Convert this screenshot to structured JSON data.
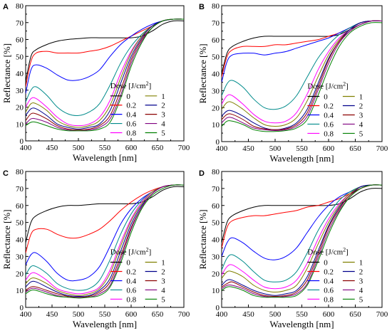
{
  "figure": {
    "panels": [
      "A",
      "B",
      "C",
      "D"
    ],
    "legend_title": "Dose [J/cm",
    "legend_title_sup": "2",
    "legend_title_end": "]"
  },
  "chart_data": [
    {
      "type": "line",
      "panel": "A",
      "xlabel": "Wavelength [nm]",
      "ylabel": "Reflectance [%]",
      "xlim": [
        400,
        700
      ],
      "ylim": [
        0,
        80
      ],
      "xticks": [
        400,
        450,
        500,
        550,
        600,
        650,
        700
      ],
      "yticks": [
        0,
        10,
        20,
        30,
        40,
        50,
        60,
        70,
        80
      ],
      "grid": false,
      "legend_placement": "center-right",
      "x": [
        400,
        410,
        420,
        440,
        460,
        480,
        500,
        520,
        540,
        560,
        580,
        600,
        620,
        640,
        660,
        680,
        700
      ],
      "series": [
        {
          "name": "0",
          "color": "#000000",
          "values": [
            35,
            50,
            54,
            57,
            59,
            60,
            60.5,
            61,
            61,
            61,
            61,
            61,
            62,
            65,
            69,
            71,
            71
          ]
        },
        {
          "name": "0.2",
          "color": "#ff0000",
          "values": [
            32,
            47,
            52,
            53,
            52,
            52,
            52,
            53,
            54,
            56,
            59,
            62,
            65,
            68,
            71,
            72,
            72
          ]
        },
        {
          "name": "0.4",
          "color": "#0000ff",
          "values": [
            28,
            42,
            45,
            43,
            39,
            36,
            36,
            38,
            42,
            50,
            57,
            62,
            66,
            69,
            71,
            72,
            72
          ]
        },
        {
          "name": "0.6",
          "color": "#008b8b",
          "values": [
            23,
            30,
            32,
            27,
            20,
            16,
            15,
            17,
            22,
            33,
            46,
            56,
            63,
            68,
            71,
            72,
            72
          ]
        },
        {
          "name": "0.8",
          "color": "#ff00ff",
          "values": [
            20,
            25,
            25,
            20,
            14,
            10,
            9,
            10,
            14,
            24,
            40,
            53,
            62,
            68,
            71,
            72,
            72
          ]
        },
        {
          "name": "1",
          "color": "#808000",
          "values": [
            17,
            22,
            22,
            18,
            12,
            9,
            8,
            9,
            12,
            21,
            37,
            52,
            62,
            68,
            71,
            72,
            72
          ]
        },
        {
          "name": "2",
          "color": "#00008b",
          "values": [
            15,
            19,
            19,
            15,
            10,
            8,
            7,
            8,
            10,
            18,
            34,
            50,
            61,
            68,
            71,
            72,
            72
          ]
        },
        {
          "name": "3",
          "color": "#8b0000",
          "values": [
            12,
            16,
            16,
            13,
            9,
            7,
            6.5,
            7,
            9,
            15,
            30,
            48,
            60,
            67,
            71,
            72,
            72
          ]
        },
        {
          "name": "4",
          "color": "#800080",
          "values": [
            10,
            13,
            13,
            11,
            8,
            6.5,
            6,
            6.5,
            8,
            13,
            27,
            46,
            59,
            67,
            71,
            72,
            72
          ]
        },
        {
          "name": "5",
          "color": "#008000",
          "values": [
            9,
            11,
            11,
            9,
            7,
            6,
            6,
            6,
            7,
            11,
            25,
            44,
            58,
            67,
            71,
            72,
            72
          ]
        }
      ]
    },
    {
      "type": "line",
      "panel": "B",
      "xlabel": "Wavelength [nm]",
      "ylabel": "Reflectance [%]",
      "xlim": [
        400,
        700
      ],
      "ylim": [
        0,
        80
      ],
      "xticks": [
        400,
        450,
        500,
        550,
        600,
        650,
        700
      ],
      "yticks": [
        0,
        10,
        20,
        30,
        40,
        50,
        60,
        70,
        80
      ],
      "grid": false,
      "legend_placement": "center-right",
      "x": [
        400,
        410,
        420,
        440,
        460,
        480,
        500,
        520,
        540,
        560,
        580,
        600,
        620,
        640,
        660,
        680,
        700
      ],
      "series": [
        {
          "name": "0",
          "color": "#000000",
          "values": [
            40,
            52,
            56,
            59,
            61,
            62,
            62,
            62,
            62,
            62,
            62,
            62,
            63,
            66,
            69,
            71,
            71
          ]
        },
        {
          "name": "0.2",
          "color": "#ff0000",
          "values": [
            38,
            50,
            54,
            56,
            56,
            56,
            57,
            57,
            58,
            59,
            60,
            62,
            64,
            67,
            70,
            71,
            71
          ]
        },
        {
          "name": "0.4",
          "color": "#0000ff",
          "values": [
            35,
            47,
            51,
            52,
            52,
            51,
            52,
            53,
            55,
            57,
            59,
            61,
            64,
            67,
            70,
            71,
            71
          ]
        },
        {
          "name": "0.6",
          "color": "#008b8b",
          "values": [
            27,
            34,
            36,
            32,
            25,
            20,
            19,
            21,
            27,
            38,
            49,
            57,
            63,
            67,
            70,
            71,
            71
          ]
        },
        {
          "name": "0.8",
          "color": "#ff00ff",
          "values": [
            22,
            27,
            27,
            22,
            16,
            12,
            11,
            12,
            17,
            28,
            42,
            53,
            61,
            66,
            70,
            71,
            71
          ]
        },
        {
          "name": "1",
          "color": "#808000",
          "values": [
            19,
            23,
            23,
            19,
            14,
            10,
            9,
            10,
            14,
            24,
            38,
            51,
            60,
            66,
            70,
            71,
            71
          ]
        },
        {
          "name": "2",
          "color": "#00008b",
          "values": [
            15,
            18,
            18,
            15,
            11,
            8,
            7,
            8,
            11,
            19,
            34,
            49,
            59,
            66,
            70,
            71,
            71
          ]
        },
        {
          "name": "3",
          "color": "#8b0000",
          "values": [
            13,
            16,
            16,
            13,
            9,
            7.5,
            7,
            7.5,
            10,
            17,
            32,
            48,
            59,
            65,
            69,
            71,
            71
          ]
        },
        {
          "name": "4",
          "color": "#800080",
          "values": [
            11,
            14,
            14,
            11,
            8,
            7,
            6.5,
            7,
            9,
            15,
            30,
            46,
            58,
            65,
            69,
            71,
            71
          ]
        },
        {
          "name": "5",
          "color": "#008000",
          "values": [
            9,
            12,
            12,
            10,
            7,
            6,
            6,
            6.5,
            8,
            13,
            27,
            43,
            56,
            64,
            68,
            70,
            70
          ]
        }
      ]
    },
    {
      "type": "line",
      "panel": "C",
      "xlabel": "Wavelength [nm]",
      "ylabel": "Reflectance [%]",
      "xlim": [
        400,
        700
      ],
      "ylim": [
        0,
        80
      ],
      "xticks": [
        400,
        450,
        500,
        550,
        600,
        650,
        700
      ],
      "yticks": [
        0,
        10,
        20,
        30,
        40,
        50,
        60,
        70,
        80
      ],
      "grid": false,
      "legend_placement": "center-right",
      "x": [
        400,
        410,
        420,
        440,
        460,
        480,
        500,
        520,
        540,
        560,
        580,
        600,
        620,
        640,
        660,
        680,
        700
      ],
      "series": [
        {
          "name": "0",
          "color": "#000000",
          "values": [
            38,
            50,
            54,
            57,
            59,
            60,
            60,
            60.5,
            61,
            61,
            61,
            61,
            62,
            65,
            69,
            71,
            71
          ]
        },
        {
          "name": "0.2",
          "color": "#ff0000",
          "values": [
            32,
            43,
            46,
            46,
            43,
            41,
            41,
            43,
            46,
            51,
            57,
            62,
            66,
            69,
            71,
            72,
            72
          ]
        },
        {
          "name": "0.4",
          "color": "#0000ff",
          "values": [
            25,
            31,
            32,
            27,
            20,
            16,
            16,
            18,
            24,
            36,
            49,
            58,
            64,
            68,
            71,
            72,
            72
          ]
        },
        {
          "name": "0.6",
          "color": "#008b8b",
          "values": [
            19,
            24,
            24,
            20,
            14,
            11,
            10,
            11,
            16,
            28,
            43,
            55,
            63,
            68,
            71,
            72,
            72
          ]
        },
        {
          "name": "0.8",
          "color": "#ff00ff",
          "values": [
            16,
            20,
            20,
            16,
            11,
            9,
            8,
            9,
            12,
            22,
            38,
            52,
            62,
            68,
            71,
            72,
            72
          ]
        },
        {
          "name": "1",
          "color": "#808000",
          "values": [
            14,
            17,
            17,
            14,
            10,
            8,
            7,
            8,
            11,
            20,
            36,
            51,
            61,
            68,
            71,
            72,
            72
          ]
        },
        {
          "name": "2",
          "color": "#00008b",
          "values": [
            12,
            15,
            15,
            12,
            9,
            7,
            6.5,
            7,
            10,
            17,
            33,
            49,
            60,
            67,
            71,
            72,
            72
          ]
        },
        {
          "name": "3",
          "color": "#8b0000",
          "values": [
            10,
            12,
            12,
            10,
            8,
            6.5,
            6,
            6.5,
            9,
            15,
            30,
            47,
            59,
            67,
            71,
            72,
            72
          ]
        },
        {
          "name": "4",
          "color": "#800080",
          "values": [
            9,
            11,
            11,
            9,
            7,
            6,
            6,
            6,
            8,
            13,
            28,
            46,
            59,
            67,
            71,
            72,
            72
          ]
        },
        {
          "name": "5",
          "color": "#008000",
          "values": [
            8,
            10,
            10,
            8,
            6.5,
            6,
            5.5,
            6,
            7,
            12,
            26,
            44,
            58,
            66,
            70,
            72,
            72
          ]
        }
      ]
    },
    {
      "type": "line",
      "panel": "D",
      "xlabel": "Wavelength [nm]",
      "ylabel": "Reflectance [%]",
      "xlim": [
        400,
        700
      ],
      "ylim": [
        0,
        80
      ],
      "xticks": [
        400,
        450,
        500,
        550,
        600,
        650,
        700
      ],
      "yticks": [
        0,
        10,
        20,
        30,
        40,
        50,
        60,
        70,
        80
      ],
      "grid": false,
      "legend_placement": "center-right",
      "x": [
        400,
        410,
        420,
        440,
        460,
        480,
        500,
        520,
        540,
        560,
        580,
        600,
        620,
        640,
        660,
        680,
        700
      ],
      "series": [
        {
          "name": "0",
          "color": "#000000",
          "values": [
            38,
            50,
            54,
            57,
            59,
            60,
            60,
            60,
            60,
            60,
            60,
            60,
            61,
            64,
            68,
            70,
            70
          ]
        },
        {
          "name": "0.2",
          "color": "#ff0000",
          "values": [
            35,
            47,
            51,
            53,
            54,
            54,
            55,
            56,
            57,
            59,
            60,
            62,
            64,
            67,
            70,
            72,
            72
          ]
        },
        {
          "name": "0.4",
          "color": "#0000ff",
          "values": [
            30,
            38,
            41,
            38,
            33,
            29,
            28,
            30,
            35,
            44,
            53,
            60,
            65,
            68,
            71,
            72,
            72
          ]
        },
        {
          "name": "0.6",
          "color": "#008b8b",
          "values": [
            22,
            29,
            31,
            27,
            21,
            16,
            15,
            16,
            21,
            32,
            45,
            55,
            63,
            68,
            71,
            72,
            72
          ]
        },
        {
          "name": "0.8",
          "color": "#ff00ff",
          "values": [
            19,
            24,
            25,
            21,
            16,
            12,
            11,
            12,
            16,
            26,
            40,
            52,
            61,
            67,
            71,
            72,
            72
          ]
        },
        {
          "name": "1",
          "color": "#808000",
          "values": [
            17,
            21,
            21,
            18,
            13,
            10,
            9,
            10,
            13,
            23,
            37,
            50,
            60,
            67,
            71,
            72,
            72
          ]
        },
        {
          "name": "2",
          "color": "#00008b",
          "values": [
            13,
            16,
            16,
            13,
            10,
            8,
            7,
            8,
            10,
            18,
            33,
            48,
            59,
            66,
            71,
            72,
            72
          ]
        },
        {
          "name": "3",
          "color": "#8b0000",
          "values": [
            12,
            14,
            15,
            12,
            9,
            7,
            6.5,
            7,
            9,
            16,
            31,
            47,
            58,
            66,
            70,
            72,
            72
          ]
        },
        {
          "name": "4",
          "color": "#800080",
          "values": [
            11,
            13,
            13,
            11,
            8,
            6.5,
            6,
            6.5,
            8,
            14,
            29,
            45,
            57,
            65,
            70,
            72,
            72
          ]
        },
        {
          "name": "5",
          "color": "#008000",
          "values": [
            10,
            12,
            12,
            10,
            7,
            6,
            6,
            6,
            7,
            13,
            27,
            43,
            56,
            65,
            70,
            72,
            72
          ]
        }
      ]
    }
  ]
}
